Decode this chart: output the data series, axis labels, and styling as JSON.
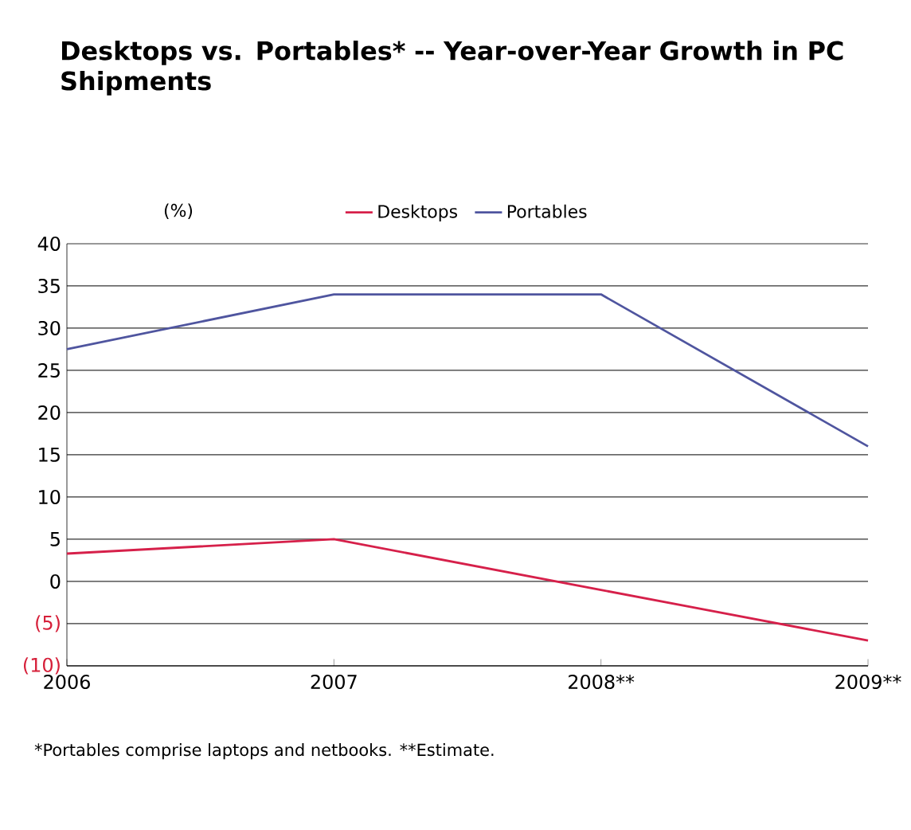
{
  "chart_data": {
    "type": "line",
    "title": "Desktops vs. Portables* -- Year-over-Year Growth in PC Shipments",
    "ylabel": "(%)",
    "categories": [
      "2006",
      "2007",
      "2008**",
      "2009**"
    ],
    "series": [
      {
        "name": "Desktops",
        "color": "#d6204a",
        "values": [
          3.3,
          5,
          -1,
          -7
        ]
      },
      {
        "name": "Portables",
        "color": "#4f559f",
        "values": [
          27.5,
          34,
          34,
          16
        ]
      }
    ],
    "ylim": [
      -10,
      40
    ],
    "yticks": [
      {
        "value": -10,
        "label": "(10)"
      },
      {
        "value": -5,
        "label": "(5)"
      },
      0,
      5,
      10,
      15,
      20,
      25,
      30,
      35,
      40
    ],
    "grid": "y",
    "legend": "top",
    "marker": "none",
    "line_style": "solid",
    "annotations": [
      "*Portables comprise laptops and netbooks. **Estimate."
    ]
  }
}
